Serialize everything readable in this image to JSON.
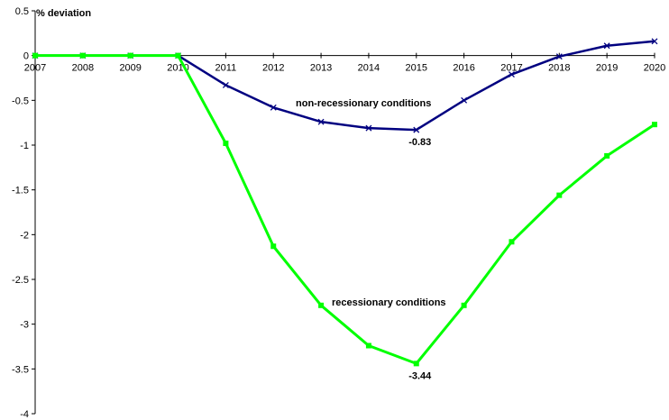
{
  "chart_data": {
    "type": "line",
    "ylabel": "% deviation",
    "ylim": [
      -4,
      0.5
    ],
    "ytick_labels": [
      "0.5",
      "0",
      "-0.5",
      "-1",
      "-1.5",
      "-2",
      "-2.5",
      "-3",
      "-3.5",
      "-4"
    ],
    "ytick_values": [
      0.5,
      0,
      -0.5,
      -1,
      -1.5,
      -2,
      -2.5,
      -3,
      -3.5,
      -4
    ],
    "categories": [
      "2007",
      "2008",
      "2009",
      "2010",
      "2011",
      "2012",
      "2013",
      "2014",
      "2015",
      "2016",
      "2017",
      "2018",
      "2019",
      "2020"
    ],
    "grid": false,
    "series": [
      {
        "name": "non-recessionary conditions",
        "color": "#000080",
        "marker": "x",
        "values": [
          0,
          0,
          0,
          0,
          -0.33,
          -0.58,
          -0.74,
          -0.81,
          -0.83,
          -0.5,
          -0.21,
          -0.01,
          0.11,
          0.16
        ]
      },
      {
        "name": "recessionary conditions",
        "color": "#00ff00",
        "marker": "square",
        "values": [
          0,
          0,
          0,
          0,
          -0.98,
          -2.13,
          -2.79,
          -3.24,
          -3.44,
          -2.79,
          -2.08,
          -1.56,
          -1.12,
          -0.77
        ]
      }
    ],
    "annotations": [
      {
        "text": "-0.83",
        "series": 0,
        "index": 8
      },
      {
        "text": "-3.44",
        "series": 1,
        "index": 8
      }
    ]
  }
}
